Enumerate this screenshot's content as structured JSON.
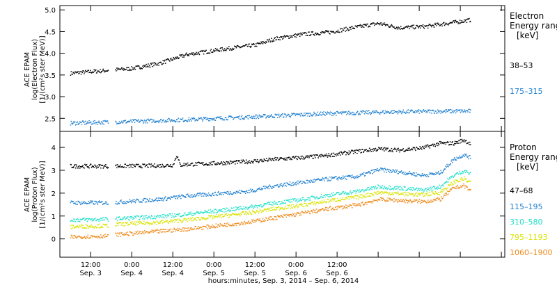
{
  "chart_data": [
    {
      "type": "scatter",
      "panel": "electron",
      "ylabel_lines": [
        "ACE EPAM",
        "log(Electron Flux)",
        "[1/(cm²s ster MeV)]"
      ],
      "ylim": [
        2.2,
        5.1
      ],
      "y_ticks": [
        2.5,
        3.0,
        3.5,
        4.0,
        4.5,
        5.0
      ],
      "y_tick_labels": [
        "2.5",
        "3.0",
        "3.5",
        "4.0",
        "4.5",
        "5.0"
      ],
      "legend_title": [
        "Electron",
        "Energy range",
        "[keV]"
      ],
      "series": [
        {
          "name": "38–53",
          "color": "#000000",
          "gaps": [
            [
              17,
              19
            ]
          ],
          "x": [
            6,
            14,
            24,
            32,
            40,
            46,
            52,
            60,
            66,
            74,
            82,
            90,
            96,
            102,
            110,
            116,
            123
          ],
          "y": [
            3.55,
            3.6,
            3.66,
            3.78,
            3.98,
            4.05,
            4.12,
            4.2,
            4.35,
            4.45,
            4.5,
            4.62,
            4.7,
            4.6,
            4.63,
            4.7,
            4.78
          ]
        },
        {
          "name": "175–315",
          "color": "#1e7fd0",
          "gaps": [
            [
              17,
              19
            ]
          ],
          "x": [
            6,
            24,
            40,
            60,
            80,
            100,
            123
          ],
          "y": [
            2.4,
            2.44,
            2.48,
            2.55,
            2.62,
            2.66,
            2.68
          ]
        }
      ]
    },
    {
      "type": "scatter",
      "panel": "proton",
      "ylabel_lines": [
        "ACE EPAM",
        "log(Proton Flux)",
        "[1/(cm²s ster MeV)]"
      ],
      "ylim": [
        -0.8,
        4.7
      ],
      "y_ticks": [
        0,
        1,
        2,
        3,
        4
      ],
      "y_tick_labels": [
        "0",
        "1",
        "2",
        "3",
        "4"
      ],
      "legend_title": [
        "Proton",
        "Energy range",
        "[keV]"
      ],
      "series": [
        {
          "name": "47–68",
          "color": "#000000",
          "gaps": [
            [
              17,
              19
            ]
          ],
          "x": [
            6,
            17,
            19,
            32,
            36,
            37,
            38,
            40,
            45,
            58,
            66,
            74,
            80,
            90,
            96,
            102,
            109,
            114,
            118,
            121,
            123
          ],
          "y": [
            3.2,
            3.2,
            3.2,
            3.22,
            3.25,
            3.7,
            3.25,
            3.28,
            3.3,
            3.4,
            3.5,
            3.58,
            3.65,
            3.85,
            3.95,
            3.9,
            4.0,
            4.2,
            4.2,
            4.35,
            4.15
          ]
        },
        {
          "name": "115–195",
          "color": "#1e7fd0",
          "gaps": [
            [
              17,
              19
            ]
          ],
          "x": [
            6,
            17,
            19,
            32,
            40,
            58,
            66,
            74,
            82,
            90,
            96,
            102,
            109,
            114,
            118,
            121,
            123
          ],
          "y": [
            1.6,
            1.6,
            1.62,
            1.75,
            1.9,
            2.1,
            2.35,
            2.5,
            2.65,
            2.75,
            3.05,
            2.95,
            2.8,
            2.9,
            3.5,
            3.7,
            3.55
          ]
        },
        {
          "name": "310–580",
          "color": "#22e0c8",
          "gaps": [
            [
              17,
              19
            ]
          ],
          "x": [
            6,
            17,
            19,
            32,
            40,
            58,
            66,
            74,
            82,
            90,
            96,
            102,
            109,
            114,
            118,
            121,
            123
          ],
          "y": [
            0.85,
            0.88,
            0.9,
            1.0,
            1.1,
            1.4,
            1.6,
            1.75,
            1.95,
            2.1,
            2.3,
            2.25,
            2.15,
            2.3,
            2.8,
            3.0,
            2.85
          ]
        },
        {
          "name": "795–1193",
          "color": "#d8e400",
          "gaps": [
            [
              17,
              19
            ]
          ],
          "x": [
            6,
            17,
            19,
            32,
            40,
            58,
            66,
            74,
            82,
            90,
            96,
            102,
            109,
            114,
            118,
            121,
            123
          ],
          "y": [
            0.55,
            0.6,
            0.65,
            0.75,
            0.85,
            1.15,
            1.35,
            1.5,
            1.7,
            1.85,
            2.05,
            2.0,
            1.95,
            2.05,
            2.5,
            2.65,
            2.45
          ]
        },
        {
          "name": "1060–1900",
          "color": "#ef8a1a",
          "gaps": [
            [
              17,
              19
            ]
          ],
          "x": [
            6,
            17,
            19,
            32,
            40,
            58,
            66,
            74,
            82,
            90,
            96,
            102,
            109,
            114,
            118,
            121,
            123
          ],
          "y": [
            0.1,
            0.15,
            0.2,
            0.35,
            0.45,
            0.75,
            0.95,
            1.15,
            1.35,
            1.5,
            1.75,
            1.7,
            1.65,
            1.75,
            2.25,
            2.35,
            2.1
          ]
        }
      ]
    }
  ],
  "x_axis": {
    "range_hours": [
      3,
      133
    ],
    "tick_hours": [
      12,
      24,
      36,
      48,
      60,
      72,
      84,
      96,
      108,
      120,
      132
    ],
    "major_labels": [
      {
        "hour": 12,
        "time": "12:00",
        "date": "Sep. 3"
      },
      {
        "hour": 24,
        "time": "0:00",
        "date": "Sep. 4"
      },
      {
        "hour": 36,
        "time": "12:00",
        "date": "Sep. 4"
      },
      {
        "hour": 48,
        "time": "0:00",
        "date": "Sep. 5"
      },
      {
        "hour": 60,
        "time": "12:00",
        "date": "Sep. 5"
      },
      {
        "hour": 72,
        "time": "0:00",
        "date": "Sep. 6"
      },
      {
        "hour": 84,
        "time": "12:00",
        "date": "Sep. 6"
      }
    ],
    "xlabel": "hours:minutes, Sep.  3, 2014 – Sep.  6, 2014"
  }
}
